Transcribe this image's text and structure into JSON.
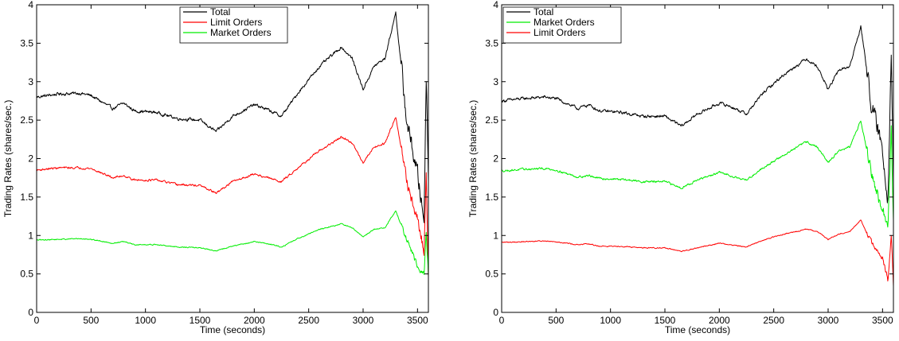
{
  "chart_data": [
    {
      "type": "line",
      "xlabel": "Time (seconds)",
      "ylabel": "Trading Rates (shares/sec.)",
      "xlim": [
        0,
        3600
      ],
      "ylim": [
        0,
        4
      ],
      "xticks": [
        0,
        500,
        1000,
        1500,
        2000,
        2500,
        3000,
        3500
      ],
      "yticks": [
        0,
        0.5,
        1,
        1.5,
        2,
        2.5,
        3,
        3.5,
        4
      ],
      "xtick_labels": [
        "0",
        "500",
        "1000",
        "1500",
        "2000",
        "2500",
        "3000",
        "3500"
      ],
      "ytick_labels": [
        "0",
        "0.5",
        "1",
        "1.5",
        "2",
        "2.5",
        "3",
        "3.5",
        "4"
      ],
      "grid": false,
      "legend_position": "top-center",
      "x": [
        0,
        200,
        400,
        500,
        700,
        800,
        900,
        1100,
        1300,
        1500,
        1650,
        1800,
        2000,
        2100,
        2250,
        2400,
        2600,
        2800,
        2900,
        3000,
        3100,
        3200,
        3300,
        3400,
        3500,
        3560,
        3580,
        3600
      ],
      "series": [
        {
          "name": "Total",
          "color": "#000000",
          "values": [
            2.8,
            2.84,
            2.85,
            2.82,
            2.65,
            2.72,
            2.62,
            2.6,
            2.52,
            2.5,
            2.35,
            2.55,
            2.7,
            2.65,
            2.55,
            2.85,
            3.2,
            3.45,
            3.3,
            2.9,
            3.2,
            3.3,
            3.9,
            2.5,
            1.8,
            1.2,
            3.1,
            1.8
          ]
        },
        {
          "name": "Limit Orders",
          "color": "#ff0000",
          "values": [
            1.85,
            1.88,
            1.88,
            1.87,
            1.75,
            1.78,
            1.72,
            1.72,
            1.66,
            1.65,
            1.55,
            1.7,
            1.8,
            1.76,
            1.7,
            1.88,
            2.1,
            2.28,
            2.2,
            1.95,
            2.15,
            2.2,
            2.55,
            1.7,
            1.2,
            0.8,
            1.8,
            0.45
          ]
        },
        {
          "name": "Market Orders",
          "color": "#00ee00",
          "values": [
            0.94,
            0.95,
            0.96,
            0.95,
            0.9,
            0.92,
            0.88,
            0.88,
            0.85,
            0.84,
            0.8,
            0.86,
            0.92,
            0.9,
            0.85,
            0.96,
            1.08,
            1.15,
            1.1,
            0.98,
            1.08,
            1.1,
            1.32,
            0.95,
            0.6,
            0.5,
            1.05,
            0.5
          ]
        }
      ]
    },
    {
      "type": "line",
      "xlabel": "Time (seconds)",
      "ylabel": "Trading Rates (shares/sec.)",
      "xlim": [
        0,
        3600
      ],
      "ylim": [
        0,
        4
      ],
      "xticks": [
        0,
        500,
        1000,
        1500,
        2000,
        2500,
        3000,
        3500
      ],
      "yticks": [
        0,
        0.5,
        1,
        1.5,
        2,
        2.5,
        3,
        3.5,
        4
      ],
      "xtick_labels": [
        "0",
        "500",
        "1000",
        "1500",
        "2000",
        "2500",
        "3000",
        "3500"
      ],
      "ytick_labels": [
        "0",
        "0.5",
        "1",
        "1.5",
        "2",
        "2.5",
        "3",
        "3.5",
        "4"
      ],
      "grid": false,
      "legend_position": "top-left",
      "x": [
        0,
        200,
        400,
        500,
        700,
        800,
        900,
        1100,
        1300,
        1500,
        1650,
        1800,
        2000,
        2100,
        2250,
        2400,
        2600,
        2800,
        2900,
        3000,
        3100,
        3200,
        3300,
        3400,
        3500,
        3550,
        3580,
        3600
      ],
      "series": [
        {
          "name": "Total",
          "color": "#000000",
          "values": [
            2.75,
            2.78,
            2.8,
            2.78,
            2.65,
            2.7,
            2.62,
            2.6,
            2.55,
            2.55,
            2.42,
            2.58,
            2.72,
            2.68,
            2.58,
            2.85,
            3.1,
            3.3,
            3.2,
            2.9,
            3.15,
            3.2,
            3.72,
            2.7,
            2.1,
            1.5,
            3.4,
            1.7
          ]
        },
        {
          "name": "Market Orders",
          "color": "#00ee00",
          "values": [
            1.84,
            1.86,
            1.87,
            1.85,
            1.76,
            1.78,
            1.74,
            1.73,
            1.7,
            1.7,
            1.62,
            1.72,
            1.82,
            1.78,
            1.72,
            1.88,
            2.05,
            2.22,
            2.15,
            1.95,
            2.1,
            2.15,
            2.5,
            1.8,
            1.3,
            1.1,
            2.4,
            1.2
          ]
        },
        {
          "name": "Limit Orders",
          "color": "#ff0000",
          "values": [
            0.91,
            0.92,
            0.93,
            0.92,
            0.88,
            0.89,
            0.86,
            0.86,
            0.84,
            0.84,
            0.79,
            0.84,
            0.9,
            0.88,
            0.85,
            0.94,
            1.02,
            1.08,
            1.05,
            0.95,
            1.02,
            1.05,
            1.2,
            0.9,
            0.7,
            0.4,
            1.0,
            0.35
          ]
        }
      ]
    }
  ]
}
